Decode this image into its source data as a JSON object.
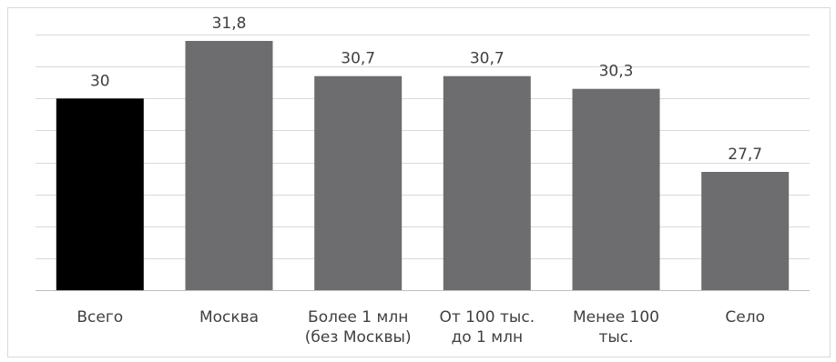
{
  "chart_data": {
    "type": "bar",
    "categories": [
      [
        "Всего"
      ],
      [
        "Москва"
      ],
      [
        "Более 1 млн",
        "(без Москвы)"
      ],
      [
        "От 100 тыс.",
        "до 1 млн"
      ],
      [
        "Менее 100",
        "тыс."
      ],
      [
        "Село"
      ]
    ],
    "values": [
      30,
      31.8,
      30.7,
      30.7,
      30.3,
      27.7
    ],
    "value_labels": [
      "30",
      "31,8",
      "30,7",
      "30,7",
      "30,3",
      "27,7"
    ],
    "bar_colors": [
      "#000000",
      "#6d6d70",
      "#6d6d70",
      "#6d6d70",
      "#6d6d70",
      "#6d6d70"
    ],
    "ylim": [
      24,
      32
    ],
    "grid": true,
    "gridline_color": "#d9d9d9",
    "title": "",
    "xlabel": "",
    "ylabel": ""
  }
}
